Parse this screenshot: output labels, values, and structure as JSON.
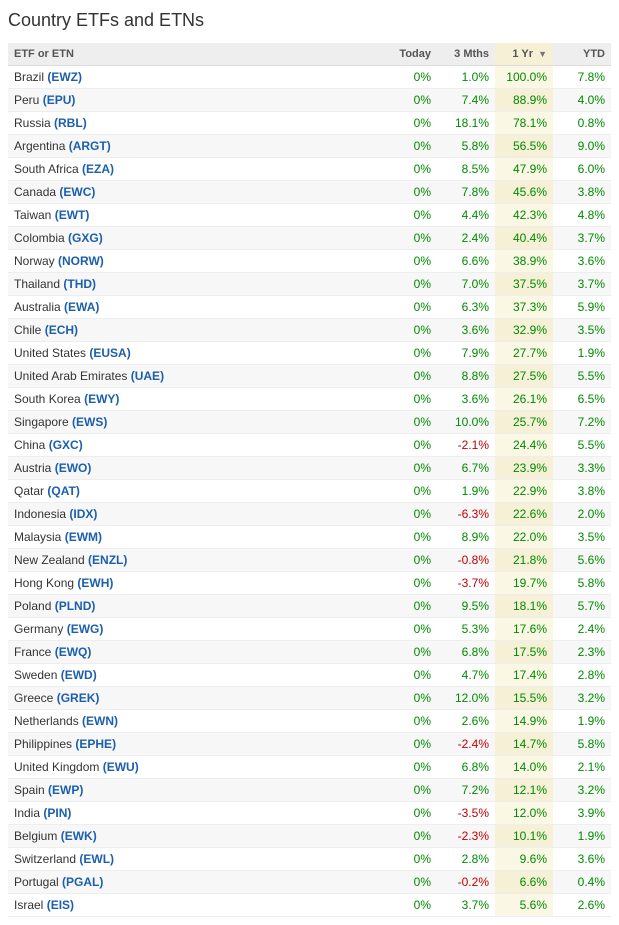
{
  "title": "Country ETFs and ETNs",
  "colors": {
    "positive": "#008a00",
    "negative": "#c00000",
    "link": "#1b5fad",
    "header_bg": "#eeeeee",
    "sorted_bg": "#f6f0d6",
    "row_odd": "#ffffff",
    "row_even": "#f7f7f7",
    "border": "#eeeeee"
  },
  "sort": {
    "column": 3,
    "dir": "desc"
  },
  "columns": [
    {
      "label": "ETF or ETN",
      "type": "name"
    },
    {
      "label": "Today",
      "type": "num"
    },
    {
      "label": "3 Mths",
      "type": "num"
    },
    {
      "label": "1 Yr",
      "type": "num",
      "sorted": true
    },
    {
      "label": "YTD",
      "type": "num"
    }
  ],
  "rows": [
    {
      "country": "Brazil",
      "ticker": "EWZ",
      "vals": [
        "0%",
        "1.0%",
        "100.0%",
        "7.8%"
      ]
    },
    {
      "country": "Peru",
      "ticker": "EPU",
      "vals": [
        "0%",
        "7.4%",
        "88.9%",
        "4.0%"
      ]
    },
    {
      "country": "Russia",
      "ticker": "RBL",
      "vals": [
        "0%",
        "18.1%",
        "78.1%",
        "0.8%"
      ]
    },
    {
      "country": "Argentina",
      "ticker": "ARGT",
      "vals": [
        "0%",
        "5.8%",
        "56.5%",
        "9.0%"
      ]
    },
    {
      "country": "South Africa",
      "ticker": "EZA",
      "vals": [
        "0%",
        "8.5%",
        "47.9%",
        "6.0%"
      ]
    },
    {
      "country": "Canada",
      "ticker": "EWC",
      "vals": [
        "0%",
        "7.8%",
        "45.6%",
        "3.8%"
      ]
    },
    {
      "country": "Taiwan",
      "ticker": "EWT",
      "vals": [
        "0%",
        "4.4%",
        "42.3%",
        "4.8%"
      ]
    },
    {
      "country": "Colombia",
      "ticker": "GXG",
      "vals": [
        "0%",
        "2.4%",
        "40.4%",
        "3.7%"
      ]
    },
    {
      "country": "Norway",
      "ticker": "NORW",
      "vals": [
        "0%",
        "6.6%",
        "38.9%",
        "3.6%"
      ]
    },
    {
      "country": "Thailand",
      "ticker": "THD",
      "vals": [
        "0%",
        "7.0%",
        "37.5%",
        "3.7%"
      ]
    },
    {
      "country": "Australia",
      "ticker": "EWA",
      "vals": [
        "0%",
        "6.3%",
        "37.3%",
        "5.9%"
      ]
    },
    {
      "country": "Chile",
      "ticker": "ECH",
      "vals": [
        "0%",
        "3.6%",
        "32.9%",
        "3.5%"
      ]
    },
    {
      "country": "United States",
      "ticker": "EUSA",
      "vals": [
        "0%",
        "7.9%",
        "27.7%",
        "1.9%"
      ]
    },
    {
      "country": "United Arab Emirates",
      "ticker": "UAE",
      "vals": [
        "0%",
        "8.8%",
        "27.5%",
        "5.5%"
      ]
    },
    {
      "country": "South Korea",
      "ticker": "EWY",
      "vals": [
        "0%",
        "3.6%",
        "26.1%",
        "6.5%"
      ]
    },
    {
      "country": "Singapore",
      "ticker": "EWS",
      "vals": [
        "0%",
        "10.0%",
        "25.7%",
        "7.2%"
      ]
    },
    {
      "country": "China",
      "ticker": "GXC",
      "vals": [
        "0%",
        "-2.1%",
        "24.4%",
        "5.5%"
      ]
    },
    {
      "country": "Austria",
      "ticker": "EWO",
      "vals": [
        "0%",
        "6.7%",
        "23.9%",
        "3.3%"
      ]
    },
    {
      "country": "Qatar",
      "ticker": "QAT",
      "vals": [
        "0%",
        "1.9%",
        "22.9%",
        "3.8%"
      ]
    },
    {
      "country": "Indonesia",
      "ticker": "IDX",
      "vals": [
        "0%",
        "-6.3%",
        "22.6%",
        "2.0%"
      ]
    },
    {
      "country": "Malaysia",
      "ticker": "EWM",
      "vals": [
        "0%",
        "8.9%",
        "22.0%",
        "3.5%"
      ]
    },
    {
      "country": "New Zealand",
      "ticker": "ENZL",
      "vals": [
        "0%",
        "-0.8%",
        "21.8%",
        "5.6%"
      ]
    },
    {
      "country": "Hong Kong",
      "ticker": "EWH",
      "vals": [
        "0%",
        "-3.7%",
        "19.7%",
        "5.8%"
      ]
    },
    {
      "country": "Poland",
      "ticker": "PLND",
      "vals": [
        "0%",
        "9.5%",
        "18.1%",
        "5.7%"
      ]
    },
    {
      "country": "Germany",
      "ticker": "EWG",
      "vals": [
        "0%",
        "5.3%",
        "17.6%",
        "2.4%"
      ]
    },
    {
      "country": "France",
      "ticker": "EWQ",
      "vals": [
        "0%",
        "6.8%",
        "17.5%",
        "2.3%"
      ]
    },
    {
      "country": "Sweden",
      "ticker": "EWD",
      "vals": [
        "0%",
        "4.7%",
        "17.4%",
        "2.8%"
      ]
    },
    {
      "country": "Greece",
      "ticker": "GREK",
      "vals": [
        "0%",
        "12.0%",
        "15.5%",
        "3.2%"
      ]
    },
    {
      "country": "Netherlands",
      "ticker": "EWN",
      "vals": [
        "0%",
        "2.6%",
        "14.9%",
        "1.9%"
      ]
    },
    {
      "country": "Philippines",
      "ticker": "EPHE",
      "vals": [
        "0%",
        "-2.4%",
        "14.7%",
        "5.8%"
      ]
    },
    {
      "country": "United Kingdom",
      "ticker": "EWU",
      "vals": [
        "0%",
        "6.8%",
        "14.0%",
        "2.1%"
      ]
    },
    {
      "country": "Spain",
      "ticker": "EWP",
      "vals": [
        "0%",
        "7.2%",
        "12.1%",
        "3.2%"
      ]
    },
    {
      "country": "India",
      "ticker": "PIN",
      "vals": [
        "0%",
        "-3.5%",
        "12.0%",
        "3.9%"
      ]
    },
    {
      "country": "Belgium",
      "ticker": "EWK",
      "vals": [
        "0%",
        "-2.3%",
        "10.1%",
        "1.9%"
      ]
    },
    {
      "country": "Switzerland",
      "ticker": "EWL",
      "vals": [
        "0%",
        "2.8%",
        "9.6%",
        "3.6%"
      ]
    },
    {
      "country": "Portugal",
      "ticker": "PGAL",
      "vals": [
        "0%",
        "-0.2%",
        "6.6%",
        "0.4%"
      ]
    },
    {
      "country": "Israel",
      "ticker": "EIS",
      "vals": [
        "0%",
        "3.7%",
        "5.6%",
        "2.6%"
      ]
    }
  ]
}
